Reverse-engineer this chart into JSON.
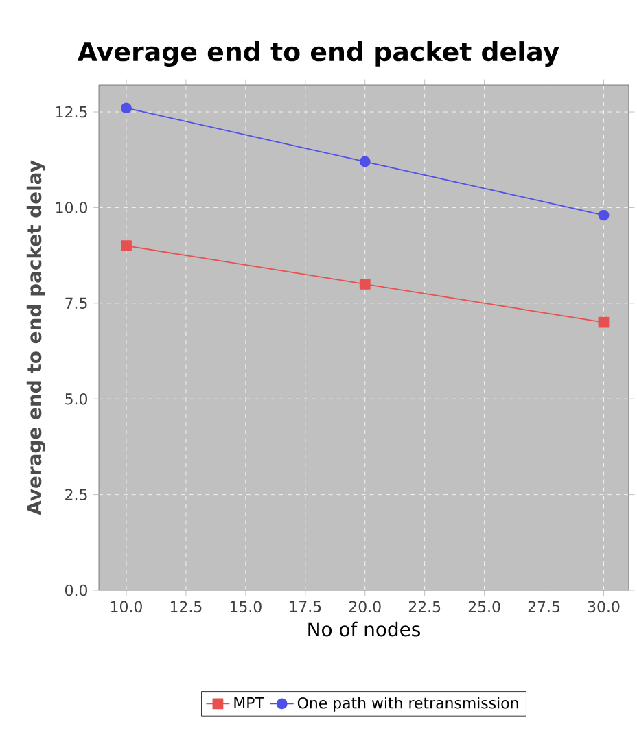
{
  "chart_data": {
    "type": "line",
    "title": "Average end to end packet delay",
    "xlabel": "No of nodes",
    "ylabel": "Average end to end packet delay",
    "x": [
      10,
      20,
      30
    ],
    "series": [
      {
        "name": "MPT",
        "color": "#e85050",
        "marker": "square",
        "values": [
          9.0,
          8.0,
          7.0
        ]
      },
      {
        "name": "One path with retransmission",
        "color": "#5050e8",
        "marker": "circle",
        "values": [
          12.6,
          11.2,
          9.8
        ]
      }
    ],
    "xlim": [
      8.85,
      31.05
    ],
    "ylim": [
      0,
      13.2
    ],
    "xticks": [
      {
        "value": 10,
        "label": "10.0"
      },
      {
        "value": 12.5,
        "label": "12.5"
      },
      {
        "value": 15,
        "label": "15.0"
      },
      {
        "value": 17.5,
        "label": "17.5"
      },
      {
        "value": 20,
        "label": "20.0"
      },
      {
        "value": 22.5,
        "label": "22.5"
      },
      {
        "value": 25,
        "label": "25.0"
      },
      {
        "value": 27.5,
        "label": "27.5"
      },
      {
        "value": 30,
        "label": "30.0"
      }
    ],
    "yticks": [
      {
        "value": 0,
        "label": "0.0"
      },
      {
        "value": 2.5,
        "label": "2.5"
      },
      {
        "value": 5,
        "label": "5.0"
      },
      {
        "value": 7.5,
        "label": "7.5"
      },
      {
        "value": 10,
        "label": "10.0"
      },
      {
        "value": 12.5,
        "label": "12.5"
      }
    ],
    "grid": true,
    "legend": "bottom"
  }
}
